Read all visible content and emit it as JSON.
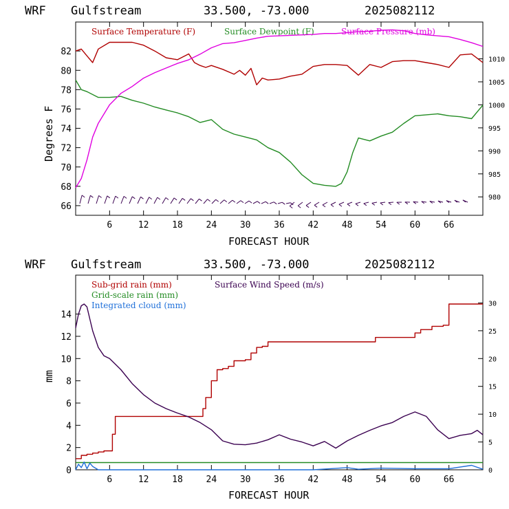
{
  "header": {
    "model": "WRF",
    "site": "Gulfstream",
    "coords": "33.500, -73.000",
    "init": "2025082112"
  },
  "colors": {
    "temperature": "#b00000",
    "dewpoint": "#228b22",
    "pressure": "#e000e0",
    "subgrid": "#b00000",
    "gridscale": "#228b22",
    "cloud": "#1e6fd9",
    "wind": "#3a0050"
  },
  "chart_data": [
    {
      "type": "line",
      "xlabel": "FORECAST HOUR",
      "ylabel": "Degrees F",
      "xlim": [
        0,
        72
      ],
      "ylim": [
        65,
        85
      ],
      "y2lim": [
        976,
        1018
      ],
      "xticks": [
        6,
        12,
        18,
        24,
        30,
        36,
        42,
        48,
        54,
        60,
        66
      ],
      "yticks": [
        66,
        68,
        70,
        72,
        74,
        76,
        78,
        80,
        82
      ],
      "y2ticks": [
        980,
        985,
        990,
        995,
        1000,
        1005,
        1010
      ],
      "legend": [
        "Surface Temperature (F)",
        "Surface Dewpoint (F)",
        "Surface Pressure (mb)"
      ],
      "series": [
        {
          "name": "Surface Temperature (F)",
          "axis": "left",
          "x": [
            0,
            1,
            2,
            3,
            4,
            6,
            8,
            10,
            12,
            14,
            16,
            18,
            20,
            21,
            22,
            23,
            24,
            26,
            28,
            29,
            30,
            31,
            32,
            33,
            34,
            36,
            38,
            40,
            42,
            44,
            46,
            48,
            50,
            52,
            54,
            56,
            58,
            60,
            62,
            64,
            66,
            68,
            70,
            72
          ],
          "y": [
            82,
            82.2,
            81.5,
            80.8,
            82.2,
            82.9,
            82.9,
            82.9,
            82.6,
            82.0,
            81.3,
            81.1,
            81.7,
            80.8,
            80.5,
            80.3,
            80.5,
            80.1,
            79.6,
            80.0,
            79.5,
            80.2,
            78.5,
            79.2,
            79.0,
            79.1,
            79.4,
            79.6,
            80.4,
            80.6,
            80.6,
            80.5,
            79.5,
            80.6,
            80.3,
            80.9,
            81.0,
            81.0,
            80.8,
            80.6,
            80.3,
            81.6,
            81.7,
            80.8
          ]
        },
        {
          "name": "Surface Dewpoint (F)",
          "axis": "left",
          "x": [
            0,
            1,
            2,
            4,
            6,
            8,
            10,
            12,
            14,
            16,
            18,
            20,
            22,
            24,
            26,
            28,
            30,
            32,
            34,
            36,
            38,
            40,
            42,
            44,
            46,
            47,
            48,
            49,
            50,
            52,
            54,
            56,
            58,
            60,
            62,
            64,
            66,
            68,
            70,
            72
          ],
          "y": [
            79,
            78.0,
            77.8,
            77.2,
            77.2,
            77.3,
            76.9,
            76.6,
            76.2,
            75.9,
            75.6,
            75.2,
            74.6,
            74.9,
            73.9,
            73.4,
            73.1,
            72.8,
            72.0,
            71.5,
            70.5,
            69.2,
            68.3,
            68.1,
            68.0,
            68.3,
            69.5,
            71.5,
            73.0,
            72.7,
            73.2,
            73.6,
            74.5,
            75.3,
            75.4,
            75.5,
            75.3,
            75.2,
            75.0,
            76.4
          ]
        },
        {
          "name": "Surface Pressure (mb)",
          "axis": "right",
          "x": [
            0,
            1,
            2,
            3,
            4,
            6,
            8,
            10,
            12,
            14,
            16,
            18,
            20,
            22,
            24,
            26,
            28,
            30,
            32,
            34,
            36,
            38,
            40,
            42,
            44,
            46,
            48,
            50,
            52,
            54,
            56,
            58,
            60,
            62,
            64,
            66,
            68,
            70,
            72
          ],
          "y": [
            982,
            984,
            988,
            993,
            996,
            1000,
            1002.5,
            1004,
            1005.8,
            1007,
            1008,
            1009,
            1009.8,
            1011,
            1012.4,
            1013.3,
            1013.5,
            1014,
            1014.5,
            1014.9,
            1015,
            1015.1,
            1015.2,
            1015.3,
            1015.5,
            1015.5,
            1015.7,
            1015.9,
            1016,
            1016.2,
            1016.3,
            1016.1,
            1015.5,
            1015.2,
            1015,
            1014.8,
            1014.2,
            1013.5,
            1012.7
          ]
        }
      ]
    },
    {
      "type": "line",
      "xlabel": "FORECAST HOUR",
      "ylabel": "mm",
      "xlim": [
        0,
        72
      ],
      "ylim": [
        0,
        17.5
      ],
      "y2lim": [
        0,
        35
      ],
      "xticks": [
        6,
        12,
        18,
        24,
        30,
        36,
        42,
        48,
        54,
        60,
        66
      ],
      "yticks": [
        0,
        2,
        4,
        6,
        8,
        10,
        12,
        14
      ],
      "y2ticks": [
        0,
        5,
        10,
        15,
        20,
        25,
        30
      ],
      "legend": [
        "Sub-grid rain (mm)",
        "Surface Wind Speed (m/s)",
        "Grid-scale rain (mm)",
        "Integrated cloud (mm)"
      ],
      "series": [
        {
          "name": "Sub-grid rain (mm)",
          "axis": "left",
          "step": true,
          "x": [
            0,
            1,
            2,
            3,
            4,
            5,
            6,
            6.5,
            7,
            12,
            18,
            22,
            22.5,
            23,
            24,
            25,
            26,
            27,
            28,
            29,
            30,
            31,
            32,
            33,
            34,
            35,
            36,
            44,
            50,
            53,
            59,
            60,
            61,
            63,
            65,
            66,
            72
          ],
          "y": [
            1.0,
            1.3,
            1.4,
            1.5,
            1.6,
            1.7,
            1.7,
            3.2,
            4.8,
            4.8,
            4.8,
            4.8,
            5.5,
            6.5,
            8.0,
            9.0,
            9.1,
            9.3,
            9.8,
            9.8,
            9.9,
            10.5,
            11.0,
            11.1,
            11.5,
            11.5,
            11.5,
            11.5,
            11.5,
            11.9,
            11.9,
            12.3,
            12.6,
            12.9,
            13.0,
            14.9,
            14.9
          ]
        },
        {
          "name": "Grid-scale rain (mm)",
          "axis": "left",
          "x": [
            0,
            72
          ],
          "y": [
            0.65,
            0.65
          ]
        },
        {
          "name": "Integrated cloud (mm)",
          "axis": "left",
          "x": [
            0,
            0.5,
            1,
            1.5,
            2,
            2.5,
            3,
            4,
            6,
            12,
            24,
            36,
            42,
            45,
            48,
            50,
            54,
            60,
            66,
            70,
            72
          ],
          "y": [
            0,
            0.5,
            0.2,
            0.7,
            0.1,
            0.6,
            0.3,
            0.0,
            0.0,
            0.0,
            0.0,
            0.0,
            0.0,
            0.1,
            0.2,
            0.05,
            0.15,
            0.1,
            0.1,
            0.4,
            0.05
          ]
        },
        {
          "name": "Surface Wind Speed (m/s)",
          "axis": "right",
          "x": [
            0,
            0.5,
            1,
            1.5,
            2,
            3,
            4,
            5,
            6,
            8,
            10,
            12,
            14,
            16,
            18,
            20,
            22,
            24,
            26,
            28,
            30,
            32,
            34,
            36,
            38,
            40,
            42,
            44,
            46,
            48,
            50,
            52,
            54,
            56,
            58,
            60,
            62,
            64,
            66,
            68,
            70,
            71,
            72
          ],
          "y": [
            25.5,
            28,
            29.5,
            29.8,
            29.3,
            25,
            22,
            20.5,
            20,
            18,
            15.5,
            13.5,
            12,
            11,
            10.2,
            9.5,
            8.5,
            7.2,
            5.2,
            4.6,
            4.5,
            4.8,
            5.4,
            6.3,
            5.5,
            5.0,
            4.3,
            5.1,
            3.9,
            5.2,
            6.2,
            7.1,
            7.9,
            8.5,
            9.6,
            10.4,
            9.6,
            7.2,
            5.6,
            6.2,
            6.5,
            7.1,
            6.3
          ]
        }
      ]
    }
  ]
}
